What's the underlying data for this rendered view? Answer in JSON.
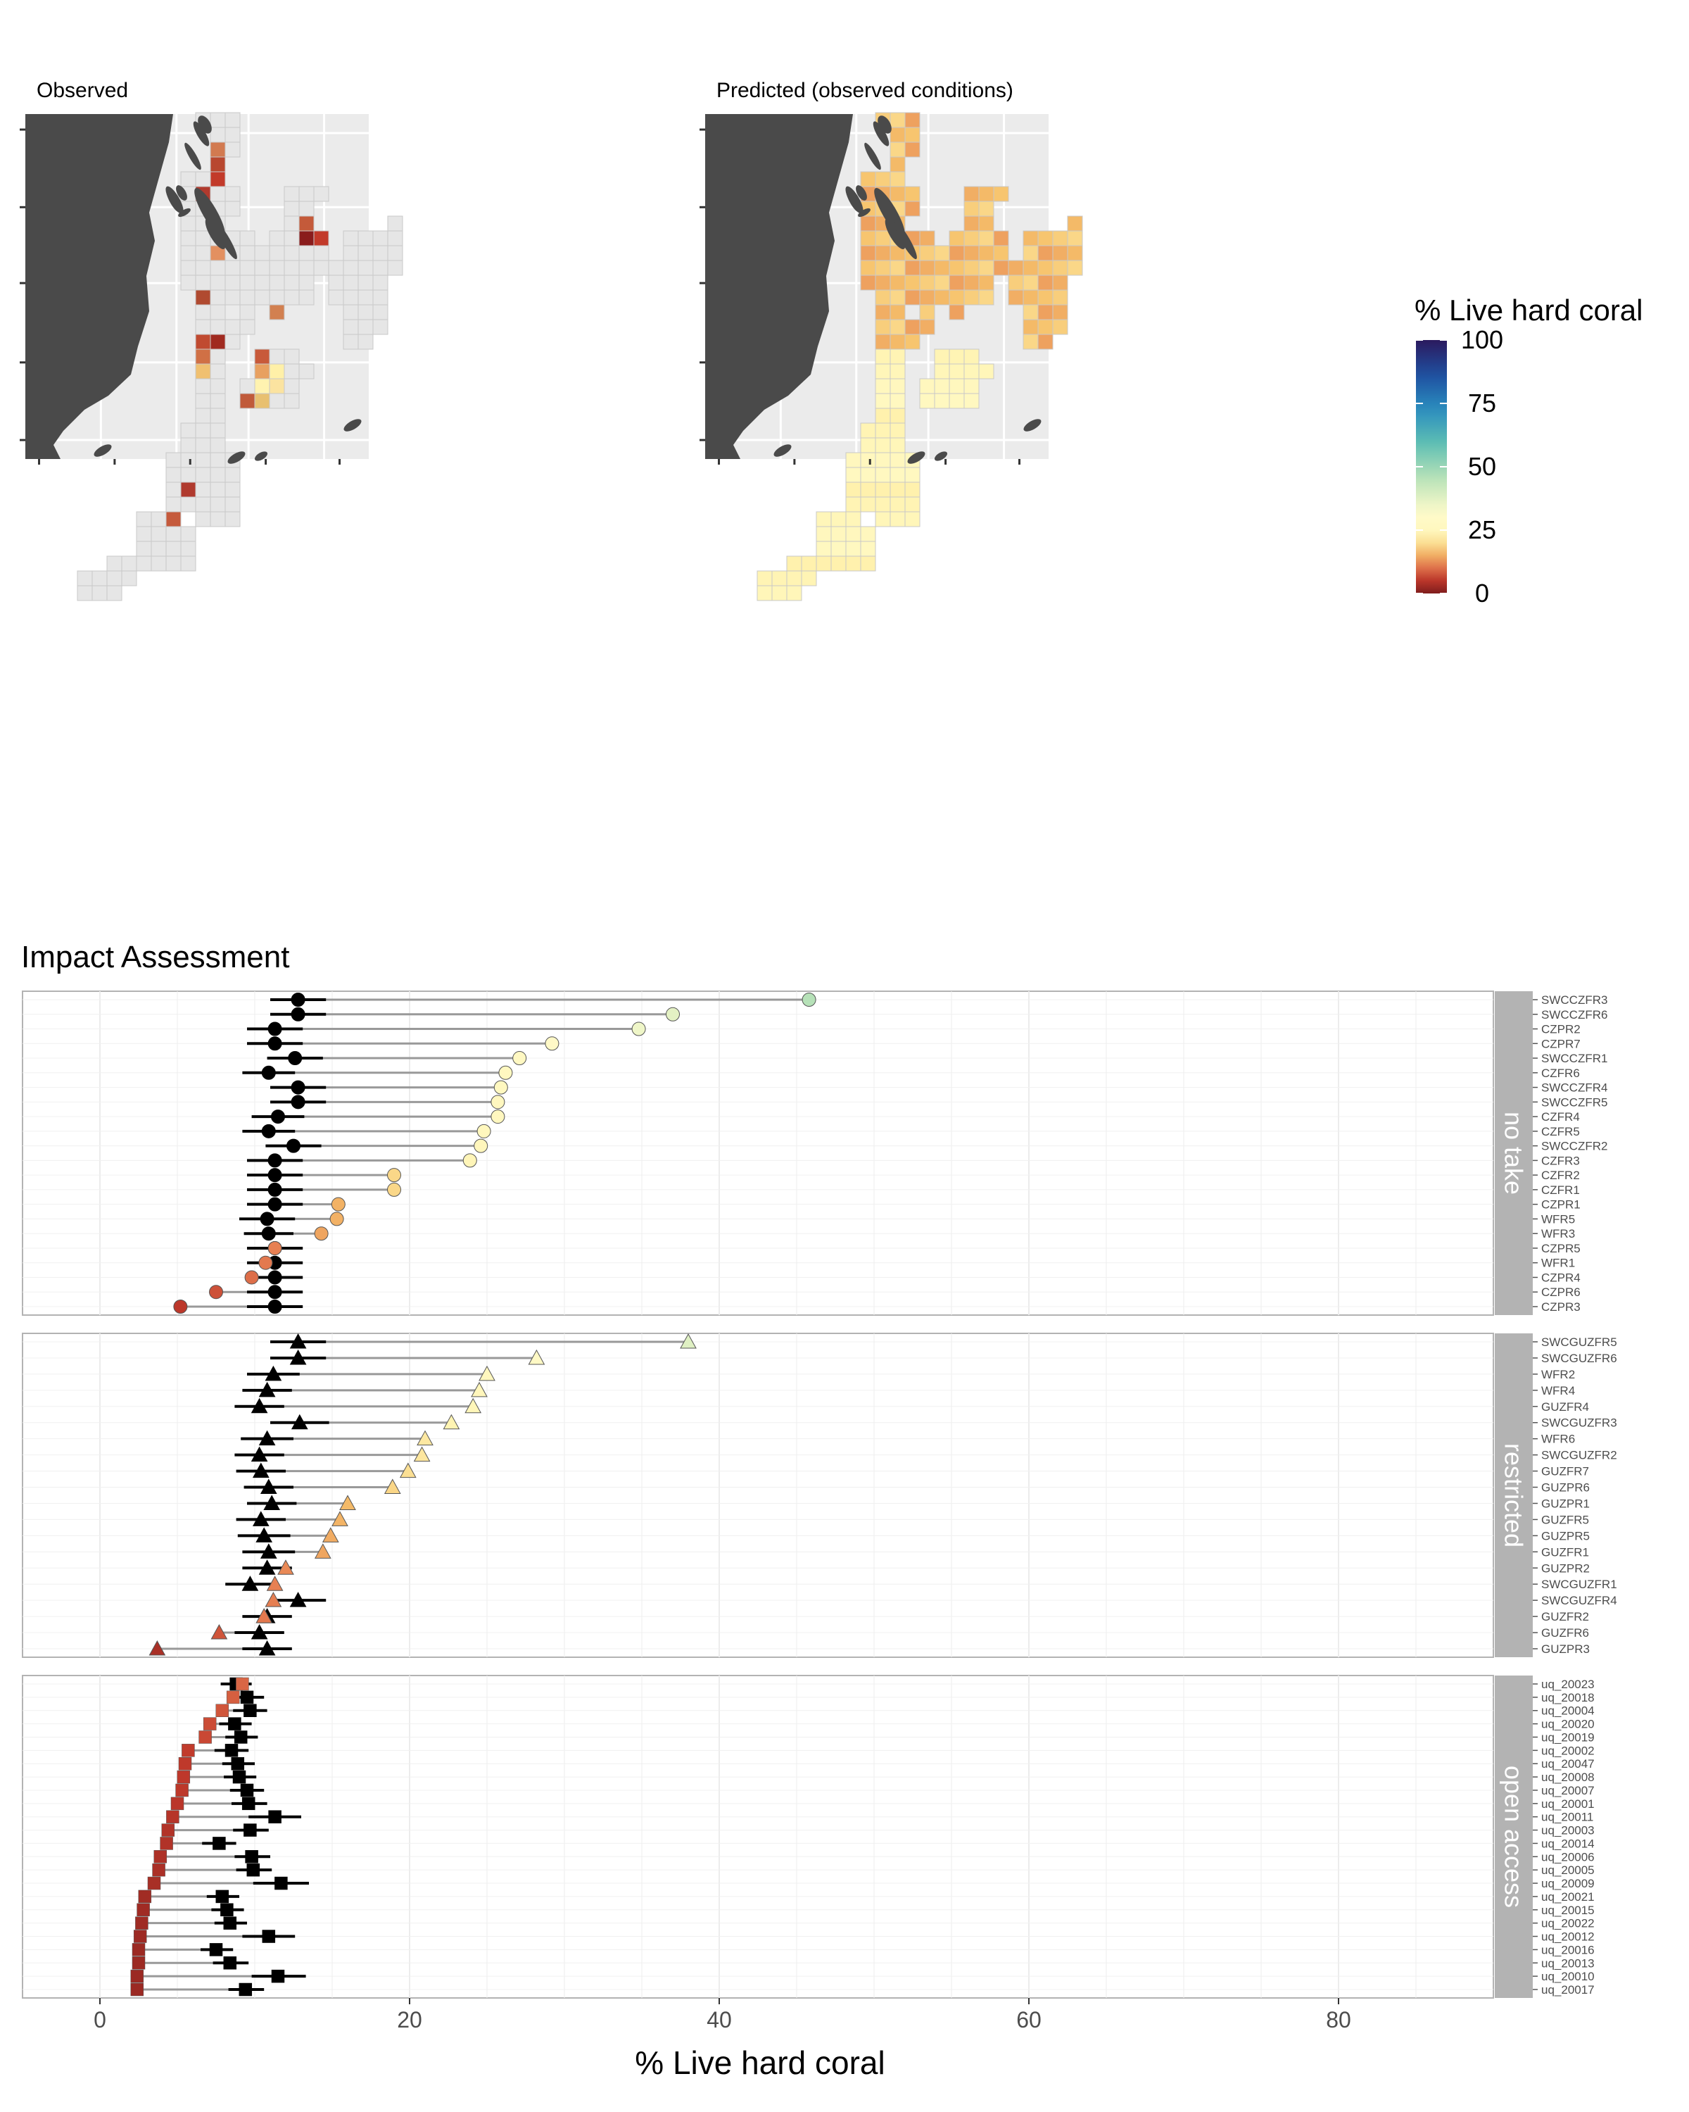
{
  "maps": {
    "observed_title": "Observed",
    "predicted_title": "Predicted (observed conditions)"
  },
  "legend": {
    "title": "% Live hard coral",
    "ticks": [
      "100",
      "75",
      "50",
      "25",
      "0"
    ],
    "palette": [
      "#7f1d1d",
      "#c0392b",
      "#e67e52",
      "#f6c26b",
      "#fff3b0",
      "#fffbcc",
      "#b8e2b8",
      "#5fbfb3",
      "#2a8dbf",
      "#1f4fa0",
      "#2b1a5e"
    ]
  },
  "colors": {
    "land": "#4a4a4a",
    "panel_bg": "#ebebeb",
    "nodata_cell": "#e6e6e6",
    "strip_bg": "#b3b3b3",
    "control_marker": "#000000",
    "segment": "#999999"
  },
  "chart_data": {
    "type": "dot-range",
    "title": "Impact Assessment",
    "xlabel": "% Live hard coral",
    "xlim": [
      -5,
      90
    ],
    "xticks": [
      0,
      20,
      40,
      60,
      80
    ],
    "grid": true,
    "facets": [
      {
        "name": "no take",
        "shape": "circle",
        "sites": [
          "SWCCZFR3",
          "SWCCZFR6",
          "CZPR2",
          "CZPR7",
          "SWCCZFR1",
          "CZFR6",
          "SWCCZFR4",
          "SWCCZFR5",
          "CZFR4",
          "CZFR5",
          "SWCCZFR2",
          "CZFR3",
          "CZFR2",
          "CZFR1",
          "CZPR1",
          "WFR5",
          "WFR3",
          "CZPR5",
          "WFR1",
          "CZPR4",
          "CZPR6",
          "CZPR3"
        ],
        "observed": [
          45.8,
          37.0,
          34.8,
          29.2,
          27.1,
          26.2,
          25.9,
          25.7,
          25.7,
          24.8,
          24.6,
          23.9,
          19.0,
          19.0,
          15.4,
          15.3,
          14.3,
          11.3,
          10.7,
          9.8,
          7.5,
          5.2
        ],
        "counterfactual": [
          12.8,
          12.8,
          11.3,
          11.3,
          12.6,
          10.9,
          12.8,
          12.8,
          11.5,
          10.9,
          12.5,
          11.3,
          11.3,
          11.3,
          11.3,
          10.8,
          10.9,
          11.3,
          11.3,
          11.3,
          11.3,
          11.3
        ],
        "ci_low": [
          11.0,
          11.0,
          9.5,
          9.5,
          10.8,
          9.2,
          11.0,
          11.0,
          9.8,
          9.2,
          10.7,
          9.5,
          9.5,
          9.5,
          9.5,
          9.0,
          9.3,
          9.5,
          9.5,
          9.5,
          9.5,
          9.5
        ],
        "ci_high": [
          14.6,
          14.6,
          13.1,
          13.1,
          14.4,
          12.6,
          14.6,
          14.6,
          13.2,
          12.6,
          14.3,
          13.1,
          13.1,
          13.1,
          13.1,
          12.6,
          12.5,
          13.1,
          13.1,
          13.1,
          13.1,
          13.1
        ]
      },
      {
        "name": "restricted",
        "shape": "triangle",
        "sites": [
          "SWCGUZFR5",
          "SWCGUZFR6",
          "WFR2",
          "WFR4",
          "GUZFR4",
          "SWCGUZFR3",
          "WFR6",
          "SWCGUZFR2",
          "GUZFR7",
          "GUZPR6",
          "GUZPR1",
          "GUZFR5",
          "GUZPR5",
          "GUZFR1",
          "GUZPR2",
          "SWCGUZFR1",
          "SWCGUZFR4",
          "GUZFR2",
          "GUZFR6",
          "GUZPR3"
        ],
        "observed": [
          38.0,
          28.2,
          25.0,
          24.5,
          24.1,
          22.7,
          21.0,
          20.8,
          19.9,
          18.9,
          16.0,
          15.5,
          14.9,
          14.4,
          12.0,
          11.3,
          11.2,
          10.6,
          7.7,
          3.7
        ],
        "counterfactual": [
          12.8,
          12.8,
          11.2,
          10.8,
          10.3,
          12.9,
          10.8,
          10.3,
          10.4,
          10.9,
          11.1,
          10.4,
          10.6,
          10.9,
          10.8,
          9.7,
          12.8,
          10.8,
          10.3,
          10.8
        ],
        "ci_low": [
          11.0,
          11.0,
          9.5,
          9.2,
          8.7,
          11.0,
          9.1,
          8.7,
          8.8,
          9.3,
          9.5,
          8.8,
          8.9,
          9.2,
          9.2,
          8.1,
          11.0,
          9.2,
          8.7,
          9.2
        ],
        "ci_high": [
          14.6,
          14.6,
          12.9,
          12.4,
          11.9,
          14.8,
          12.5,
          11.9,
          12.0,
          12.5,
          12.7,
          12.0,
          12.3,
          12.6,
          12.4,
          11.3,
          14.6,
          12.4,
          11.9,
          12.4
        ]
      },
      {
        "name": "open access",
        "shape": "square",
        "sites": [
          "uq_20023",
          "uq_20018",
          "uq_20004",
          "uq_20020",
          "uq_20019",
          "uq_20002",
          "uq_20047",
          "uq_20008",
          "uq_20007",
          "uq_20001",
          "uq_20011",
          "uq_20003",
          "uq_20014",
          "uq_20006",
          "uq_20005",
          "uq_20009",
          "uq_20021",
          "uq_20015",
          "uq_20022",
          "uq_20012",
          "uq_20016",
          "uq_20013",
          "uq_20010",
          "uq_20017"
        ],
        "observed": [
          9.2,
          8.6,
          7.9,
          7.1,
          6.8,
          5.7,
          5.5,
          5.4,
          5.3,
          5.0,
          4.7,
          4.4,
          4.3,
          3.9,
          3.8,
          3.5,
          2.9,
          2.8,
          2.7,
          2.6,
          2.5,
          2.5,
          2.4,
          2.4
        ],
        "counterfactual": [
          8.8,
          9.5,
          9.7,
          8.7,
          9.1,
          8.5,
          8.9,
          9.0,
          9.5,
          9.6,
          11.3,
          9.7,
          7.7,
          9.8,
          9.9,
          11.7,
          7.9,
          8.2,
          8.4,
          10.9,
          7.5,
          8.4,
          11.5,
          9.4
        ],
        "ci_low": [
          7.8,
          8.5,
          8.6,
          7.7,
          8.1,
          7.4,
          7.9,
          8.0,
          8.4,
          8.5,
          9.6,
          8.6,
          6.6,
          8.7,
          8.8,
          9.9,
          6.9,
          7.2,
          7.4,
          9.2,
          6.5,
          7.3,
          9.8,
          8.3
        ],
        "ci_high": [
          9.8,
          10.6,
          10.8,
          9.8,
          10.2,
          9.6,
          10.0,
          10.1,
          10.6,
          10.8,
          13.0,
          10.9,
          8.8,
          11.0,
          11.1,
          13.5,
          9.0,
          9.3,
          9.5,
          12.6,
          8.6,
          9.6,
          13.3,
          10.6
        ]
      }
    ]
  }
}
